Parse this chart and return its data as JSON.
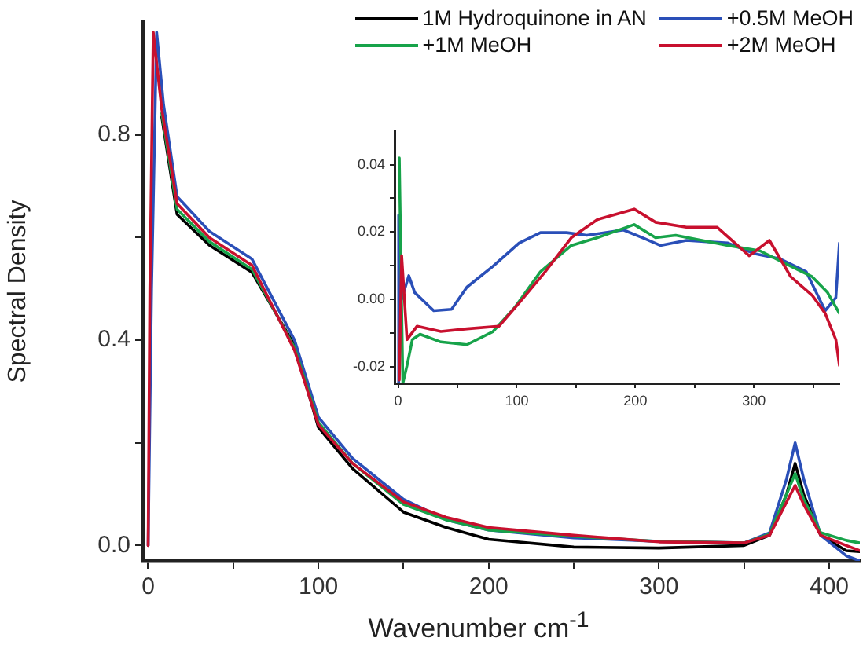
{
  "chart_data": [
    {
      "type": "line",
      "xlabel": "Wavenumber cm$^{-1}$",
      "ylabel": "Spectral Density",
      "legend": "top right",
      "marker": "none",
      "line_style": "solid",
      "grid": false,
      "x": [
        0,
        1,
        3,
        8,
        17,
        36,
        61,
        86,
        100,
        120,
        150,
        175,
        200,
        250,
        300,
        350,
        365,
        375,
        380,
        385,
        395,
        410,
        418
      ],
      "series": [
        {
          "name": "1M Hydroquinone in AN",
          "color": "#000000",
          "values": [
            null,
            null,
            null,
            0.835,
            0.645,
            0.585,
            0.532,
            0.39,
            0.23,
            0.15,
            0.065,
            0.035,
            0.012,
            -0.003,
            -0.005,
            0.0,
            0.02,
            0.1,
            0.16,
            0.1,
            0.02,
            -0.01,
            -0.012
          ]
        },
        {
          "name": "+0.5M MeOH",
          "color": "#2a4fb8",
          "x": [
            0,
            2,
            5,
            9,
            17,
            36,
            61,
            86,
            100,
            120,
            150,
            175,
            200,
            250,
            300,
            350,
            365,
            375,
            380,
            385,
            395,
            410,
            418
          ],
          "values": [
            0,
            0.5,
            1.0,
            0.86,
            0.68,
            0.612,
            0.558,
            0.4,
            0.25,
            0.17,
            0.09,
            0.05,
            0.03,
            0.015,
            0.008,
            0.005,
            0.025,
            0.13,
            0.2,
            0.13,
            0.02,
            -0.02,
            -0.03
          ]
        },
        {
          "name": "+1M MeOH",
          "color": "#17a34a",
          "values": [
            null,
            null,
            null,
            0.842,
            0.655,
            0.592,
            0.538,
            0.385,
            0.24,
            0.16,
            0.08,
            0.05,
            0.03,
            0.018,
            0.008,
            0.005,
            0.022,
            0.1,
            0.14,
            0.09,
            0.025,
            0.01,
            0.005
          ]
        },
        {
          "name": "+2M MeOH",
          "color": "#c8102e",
          "values": [
            0,
            0.5,
            1.0,
            0.85,
            0.666,
            0.6,
            0.546,
            0.38,
            0.235,
            0.16,
            0.085,
            0.055,
            0.035,
            0.02,
            0.007,
            0.005,
            0.02,
            0.085,
            0.117,
            0.08,
            0.02,
            0.0,
            -0.01
          ]
        }
      ],
      "xlim": [
        -3,
        418
      ],
      "xticks": [
        0,
        {
          "value": 50,
          "label": null
        },
        100,
        {
          "value": 150,
          "label": null
        },
        200,
        {
          "value": 250,
          "label": null
        },
        300,
        {
          "value": 350,
          "label": null
        },
        400
      ],
      "ylim": [
        -0.03,
        1.02
      ],
      "yticks": [
        {
          "value": 0,
          "label": "0.0"
        },
        {
          "value": 0.2,
          "label": null
        },
        0.4,
        {
          "value": 0.6,
          "label": null
        },
        0.8
      ]
    },
    {
      "type": "line",
      "marker": "none",
      "line_style": "solid",
      "grid": false,
      "legend": false,
      "series": [
        {
          "color": "#2a4fb8",
          "x": [
            0,
            0.5,
            3,
            9,
            14,
            30,
            45,
            58,
            80,
            102,
            120,
            142,
            159,
            190,
            208,
            221,
            243,
            278,
            300,
            322,
            344,
            360,
            369,
            372
          ],
          "values": [
            -0.025,
            0.025,
            0.0,
            0.007,
            0.002,
            -0.0034,
            -0.003,
            0.0036,
            0.0098,
            0.0167,
            0.0198,
            0.0198,
            0.019,
            0.0206,
            0.018,
            0.016,
            0.0175,
            0.0167,
            0.0136,
            0.012,
            0.0082,
            -0.0034,
            0.0005,
            0.0167
          ]
        },
        {
          "color": "#17a34a",
          "x": [
            1,
            4,
            7.5,
            12,
            18.5,
            36,
            58,
            80,
            98,
            120,
            146,
            168,
            199,
            217,
            234,
            256,
            278,
            305,
            331,
            349,
            362,
            372
          ],
          "values": [
            0.042,
            -0.025,
            -0.0197,
            -0.012,
            -0.0104,
            -0.0127,
            -0.0135,
            -0.0096,
            -0.0026,
            0.0082,
            0.016,
            0.0183,
            0.0222,
            0.0183,
            0.019,
            0.0175,
            0.016,
            0.0144,
            0.0098,
            0.0067,
            0.002,
            -0.0042
          ]
        },
        {
          "color": "#c8102e",
          "x": [
            1,
            3,
            7.5,
            16,
            36,
            58,
            85,
            102,
            124,
            146,
            168,
            199,
            217,
            243,
            269,
            296,
            313,
            331,
            349,
            360,
            369,
            372
          ],
          "values": [
            -0.024,
            0.013,
            -0.012,
            -0.008,
            -0.0096,
            -0.0088,
            -0.008,
            -0.0011,
            0.0082,
            0.0183,
            0.0237,
            0.0268,
            0.0229,
            0.0214,
            0.0214,
            0.0129,
            0.0175,
            0.0067,
            0.0012,
            -0.0042,
            -0.012,
            -0.0197
          ]
        }
      ],
      "xlim": [
        -3,
        372
      ],
      "xticks": [
        0,
        {
          "value": 50,
          "label": null
        },
        100,
        {
          "value": 150,
          "label": null
        },
        200,
        {
          "value": 250,
          "label": null
        },
        300,
        {
          "value": 350,
          "label": null
        }
      ],
      "ylim": [
        -0.025,
        0.05
      ],
      "yticks": [
        {
          "value": -0.02,
          "label": "-0.02"
        },
        {
          "value": -0.01,
          "label": null
        },
        {
          "value": 0,
          "label": "0.00"
        },
        {
          "value": 0.01,
          "label": null
        },
        {
          "value": 0.02,
          "label": "0.02"
        },
        {
          "value": 0.03,
          "label": null
        },
        {
          "value": 0.04,
          "label": "0.04"
        }
      ]
    }
  ]
}
